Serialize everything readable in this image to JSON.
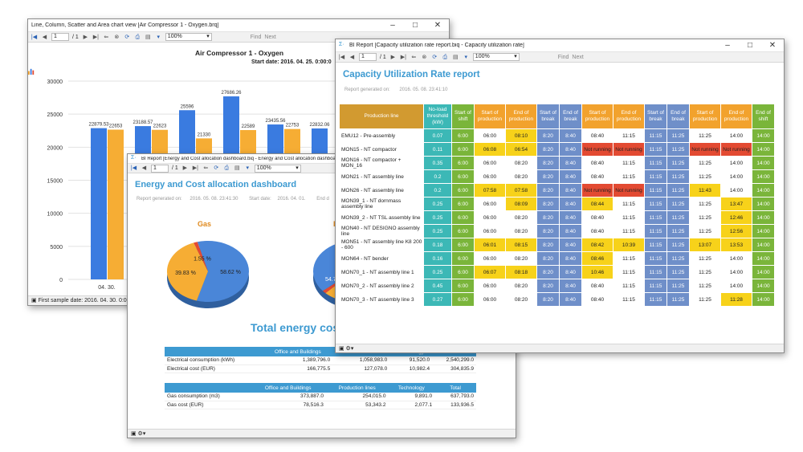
{
  "window1": {
    "title": "Line, Column, Scatter and Area chart view [Air Compressor 1 - Oxygen.brq]",
    "toolbar": {
      "page": "1",
      "pages": "/ 1",
      "zoom": "100%",
      "find": "Find",
      "next": "Next"
    },
    "status": "First sample date:  2016. 04. 30. 0:00:0",
    "chart_data": {
      "type": "bar",
      "title": "Air Compressor 1 - Oxygen",
      "subtitle": "Start date: 2016. 04. 25. 0:00:0",
      "categories": [
        "04. 30.",
        "",
        "",
        "",
        "",
        "",
        ""
      ],
      "x_tick_labels": [
        "04. 30."
      ],
      "ylim": [
        0,
        30000
      ],
      "y_ticks": [
        "0",
        "5000",
        "10000",
        "15000",
        "20000",
        "25000",
        "30000"
      ],
      "series": [
        {
          "color": "#3a7be0",
          "values": [
            22879.53,
            23188.57,
            25596,
            27686.26,
            23435.56,
            22832.06,
            0
          ]
        },
        {
          "color": "#f6ad34",
          "values": [
            22653,
            22623,
            21330,
            22589,
            22753,
            0,
            0
          ]
        }
      ],
      "data_labels_blue": [
        "22879.53",
        "23188.57",
        "25596",
        "27686.26",
        "23435.56",
        "22832.06"
      ],
      "data_labels_orange": [
        "22653",
        "22623",
        "21330",
        "22589",
        "22753"
      ]
    }
  },
  "window2": {
    "title": "BI Report [Energy and Cost allocation dashboard.biq - Energy and Cost allocation dashboard]",
    "toolbar": {
      "page": "1",
      "pages": "/ 1",
      "zoom": "100%"
    },
    "report_title": "Energy and Cost allocation dashboard",
    "report_generated": "Report generated on:",
    "report_generated_value": "2016. 05. 08. 23:41:30",
    "start_date": "Start date:",
    "start_date_value": "2016. 04. 01.",
    "end_date": "End d",
    "pie1_label": "Gas",
    "pie2_label": "E",
    "pie_slices": [
      {
        "label": "58.62 %",
        "value": 58.62,
        "color": "#4a86d8"
      },
      {
        "label": "39.83 %",
        "value": 39.83,
        "color": "#f6ad34"
      },
      {
        "label": "1.55 %",
        "value": 1.55,
        "color": "#e34a32"
      }
    ],
    "pie2_partial_label": "54.7",
    "total_title": "Total energy cost",
    "table1": {
      "headers": [
        "",
        "Office and Buildings",
        "Production lines",
        "Technology",
        "Total"
      ],
      "rows": [
        [
          "Electrical consumption (kWh)",
          "1,389,796.0",
          "1,058,983.0",
          "91,520.0",
          "2,540,299.0"
        ],
        [
          "Electrical cost (EUR)",
          "166,775.5",
          "127,078.0",
          "10,982.4",
          "304,835.9"
        ]
      ]
    },
    "table2": {
      "headers": [
        "",
        "Office and Buildings",
        "Production lines",
        "Technology",
        "Total"
      ],
      "rows": [
        [
          "Gas consumption (m3)",
          "373,887.0",
          "254,015.0",
          "9,891.0",
          "637,793.0"
        ],
        [
          "Gas cost (EUR)",
          "78,516.3",
          "53,343.2",
          "2,077.1",
          "133,936.5"
        ]
      ]
    }
  },
  "window3": {
    "title": "BI Report [Capacity utilization rate report.biq - Capacity utilization rate]",
    "toolbar": {
      "page": "1",
      "pages": "/ 1",
      "zoom": "100%",
      "find": "Find",
      "next": "Next"
    },
    "report_title": "Capacity Utilization Rate report",
    "report_generated": "Report generated on:",
    "report_generated_value": "2016. 05. 08. 23:41:10",
    "headers": [
      "Production line",
      "No-load threshold (kW)",
      "Start of shift",
      "Start of production",
      "End of production",
      "Start of break",
      "End of break",
      "Start of production",
      "End of production",
      "Start of break",
      "End of break",
      "Start of production",
      "End of production",
      "End of shift"
    ],
    "rows": [
      [
        "EMU12 - Pre-assembly",
        "0.07",
        "6:00",
        "06:00",
        "08:10",
        "8:20",
        "8:40",
        "08:40",
        "11:15",
        "11:15",
        "11:25",
        "11:25",
        "14:00",
        "14:00"
      ],
      [
        "MON15 - NT compactor",
        "0.11",
        "6:00",
        "06:08",
        "06:54",
        "8:20",
        "8:40",
        "Not running",
        "Not running",
        "11:15",
        "11:25",
        "Not running",
        "Not running",
        "14:00"
      ],
      [
        "MON16 - NT compactor + MON_16",
        "0.35",
        "6:00",
        "06:00",
        "08:20",
        "8:20",
        "8:40",
        "08:40",
        "11:15",
        "11:15",
        "11:25",
        "11:25",
        "14:00",
        "14:00"
      ],
      [
        "MON21 - NT assembly line",
        "0.2",
        "6:00",
        "06:00",
        "08:20",
        "8:20",
        "8:40",
        "08:40",
        "11:15",
        "11:15",
        "11:25",
        "11:25",
        "14:00",
        "14:00"
      ],
      [
        "MON26 - NT assembly line",
        "0.2",
        "6:00",
        "07:58",
        "07:58",
        "8:20",
        "8:40",
        "Not running",
        "Not running",
        "11:15",
        "11:25",
        "11:43",
        "14:00",
        "14:00"
      ],
      [
        "MON39_1 - NT dornmass assembly line",
        "0.25",
        "6:00",
        "06:00",
        "08:09",
        "8:20",
        "8:40",
        "08:44",
        "11:15",
        "11:15",
        "11:25",
        "11:25",
        "13:47",
        "14:00"
      ],
      [
        "MON39_2 - NT TSL assembly line",
        "0.25",
        "6:00",
        "06:00",
        "08:20",
        "8:20",
        "8:40",
        "08:40",
        "11:15",
        "11:15",
        "11:25",
        "11:25",
        "12:46",
        "14:00"
      ],
      [
        "MON40 - NT DESIGNO assembly line",
        "0.25",
        "6:00",
        "06:00",
        "08:20",
        "8:20",
        "8:40",
        "08:40",
        "11:15",
        "11:15",
        "11:25",
        "11:25",
        "12:56",
        "14:00"
      ],
      [
        "MON51 - NT assembly line K8 200 - 600",
        "0.18",
        "6:00",
        "06:01",
        "08:15",
        "8:20",
        "8:40",
        "08:42",
        "10:39",
        "11:15",
        "11:25",
        "13:07",
        "13:53",
        "14:00"
      ],
      [
        "MON64 - NT bender",
        "0.16",
        "6:00",
        "06:00",
        "08:20",
        "8:20",
        "8:40",
        "08:46",
        "11:15",
        "11:15",
        "11:25",
        "11:25",
        "14:00",
        "14:00"
      ],
      [
        "MON70_1 - NT assembly line 1",
        "0.25",
        "6:00",
        "06:07",
        "08:18",
        "8:20",
        "8:40",
        "10:46",
        "11:15",
        "11:15",
        "11:25",
        "11:25",
        "14:00",
        "14:00"
      ],
      [
        "MON70_2 - NT assembly line 2",
        "0.45",
        "6:00",
        "06:00",
        "08:20",
        "8:20",
        "8:40",
        "08:40",
        "11:15",
        "11:15",
        "11:25",
        "11:25",
        "14:00",
        "14:00"
      ],
      [
        "MON70_3 - NT assembly line 3",
        "0.27",
        "6:00",
        "06:00",
        "08:20",
        "8:20",
        "8:40",
        "08:40",
        "11:15",
        "11:15",
        "11:25",
        "11:25",
        "11:28",
        "14:00"
      ]
    ],
    "highlight": [
      [
        "",
        "",
        "",
        "",
        "y",
        "",
        "",
        "",
        "",
        "",
        "",
        "",
        "",
        ""
      ],
      [
        "",
        "",
        "",
        "y",
        "y",
        "",
        "",
        "r",
        "r",
        "",
        "",
        "r",
        "r",
        ""
      ],
      [
        "",
        "",
        "",
        "",
        "",
        "",
        "",
        "",
        "",
        "",
        "",
        "",
        "",
        ""
      ],
      [
        "",
        "",
        "",
        "",
        "",
        "",
        "",
        "",
        "",
        "",
        "",
        "",
        "",
        ""
      ],
      [
        "",
        "",
        "",
        "y",
        "y",
        "",
        "",
        "r",
        "r",
        "",
        "",
        "y",
        "",
        ""
      ],
      [
        "",
        "",
        "",
        "",
        "y",
        "",
        "",
        "y",
        "",
        "",
        "",
        "",
        "y",
        ""
      ],
      [
        "",
        "",
        "",
        "",
        "",
        "",
        "",
        "",
        "",
        "",
        "",
        "",
        "y",
        ""
      ],
      [
        "",
        "",
        "",
        "",
        "",
        "",
        "",
        "",
        "",
        "",
        "",
        "",
        "y",
        ""
      ],
      [
        "",
        "",
        "",
        "y",
        "y",
        "",
        "",
        "y",
        "y",
        "",
        "",
        "y",
        "y",
        ""
      ],
      [
        "",
        "",
        "",
        "",
        "",
        "",
        "",
        "y",
        "",
        "",
        "",
        "",
        "",
        ""
      ],
      [
        "",
        "",
        "",
        "y",
        "y",
        "",
        "",
        "y",
        "",
        "",
        "",
        "",
        "",
        ""
      ],
      [
        "",
        "",
        "",
        "",
        "",
        "",
        "",
        "",
        "",
        "",
        "",
        "",
        "",
        ""
      ],
      [
        "",
        "",
        "",
        "",
        "",
        "",
        "",
        "",
        "",
        "",
        "",
        "",
        "y",
        ""
      ]
    ]
  }
}
